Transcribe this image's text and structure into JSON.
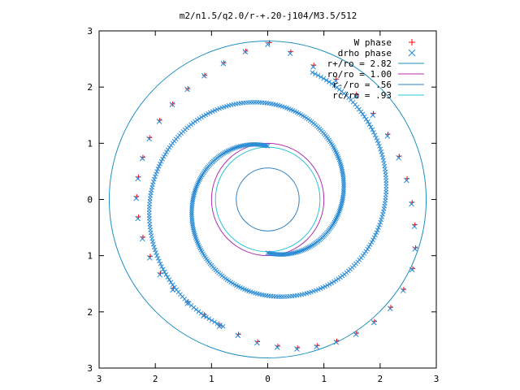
{
  "chart_data": {
    "type": "scatter",
    "title": "m2/n1.5/q2.0/r-+.20-j104/M3.5/512",
    "xlim": [
      -3,
      3
    ],
    "ylim": [
      -3,
      3
    ],
    "x_tick_labels": [
      "3",
      "2",
      "1",
      "0",
      "1",
      "2",
      "3"
    ],
    "x_tick_values": [
      -3,
      -2,
      -1,
      0,
      1,
      2,
      3
    ],
    "y_tick_labels": [
      "3",
      "2",
      "1",
      "0",
      "1",
      "2",
      "3"
    ],
    "y_tick_values": [
      3,
      2,
      1,
      0,
      -1,
      -2,
      -3
    ],
    "grid": false,
    "legend_position": "top-right",
    "legend": [
      {
        "label": "W phase",
        "marker": "+",
        "color": "#ff0000"
      },
      {
        "label": "drho phase",
        "marker": "x",
        "color": "#2a8bd4"
      },
      {
        "label": "r+/ro = 2.82",
        "color": "#1f8fc0"
      },
      {
        "label": "ro/ro = 1.00",
        "color": "#b030b0"
      },
      {
        "label": "r-/ro = .56",
        "color": "#2e7fbf"
      },
      {
        "label": "rc/ro = .93",
        "color": "#28c4d8"
      }
    ],
    "circles": [
      {
        "radius": 2.82,
        "color": "#1f8fc0"
      },
      {
        "radius": 1.0,
        "color": "#b030b0"
      },
      {
        "radius": 0.56,
        "color": "#2e7fbf"
      },
      {
        "radius": 0.93,
        "color": "#28c4d8"
      }
    ],
    "series": [
      {
        "name": "W phase",
        "points": [
          [
            0.03,
            2.79
          ],
          [
            -0.39,
            2.64
          ],
          [
            -0.78,
            2.43
          ],
          [
            -1.12,
            2.21
          ],
          [
            -1.42,
            1.97
          ],
          [
            -1.69,
            1.7
          ],
          [
            -1.92,
            1.41
          ],
          [
            -2.1,
            1.1
          ],
          [
            -2.22,
            0.75
          ],
          [
            -2.3,
            0.4
          ],
          [
            -2.33,
            0.05
          ],
          [
            -2.3,
            -0.31
          ],
          [
            -2.22,
            -0.67
          ],
          [
            -2.09,
            -1.01
          ],
          [
            -1.91,
            -1.31
          ],
          [
            -1.68,
            -1.58
          ],
          [
            -1.42,
            -1.82
          ],
          [
            -1.13,
            -2.05
          ],
          [
            -0.85,
            -2.24
          ],
          [
            -0.52,
            -2.4
          ],
          [
            -0.18,
            -2.53
          ],
          [
            0.18,
            -2.61
          ],
          [
            0.53,
            -2.64
          ],
          [
            0.88,
            -2.6
          ],
          [
            1.23,
            -2.52
          ],
          [
            1.58,
            -2.38
          ],
          [
            1.9,
            -2.17
          ],
          [
            2.19,
            -1.92
          ],
          [
            2.42,
            -1.6
          ],
          [
            2.58,
            -1.23
          ],
          [
            2.63,
            -0.86
          ],
          [
            2.62,
            -0.45
          ],
          [
            2.57,
            -0.05
          ],
          [
            2.48,
            0.37
          ],
          [
            2.34,
            0.77
          ],
          [
            2.14,
            1.16
          ],
          [
            1.88,
            1.53
          ],
          [
            1.58,
            1.87
          ],
          [
            1.22,
            2.14
          ],
          [
            0.82,
            2.39
          ],
          [
            0.41,
            2.63
          ]
        ]
      },
      {
        "name": "drho phase",
        "points": [
          [
            0.0,
            2.76
          ],
          [
            -0.4,
            2.63
          ],
          [
            -0.79,
            2.42
          ],
          [
            -1.13,
            2.2
          ],
          [
            -1.43,
            1.96
          ],
          [
            -1.7,
            1.69
          ],
          [
            -1.93,
            1.39
          ],
          [
            -2.11,
            1.08
          ],
          [
            -2.23,
            0.73
          ],
          [
            -2.31,
            0.37
          ],
          [
            -2.34,
            0.02
          ],
          [
            -2.31,
            -0.34
          ],
          [
            -2.23,
            -0.7
          ],
          [
            -2.1,
            -1.04
          ],
          [
            -1.92,
            -1.34
          ],
          [
            -1.69,
            -1.61
          ],
          [
            -1.43,
            -1.85
          ],
          [
            -1.14,
            -2.07
          ],
          [
            -0.86,
            -2.26
          ],
          [
            -0.53,
            -2.42
          ],
          [
            -0.19,
            -2.55
          ],
          [
            0.17,
            -2.63
          ],
          [
            0.52,
            -2.66
          ],
          [
            0.87,
            -2.62
          ],
          [
            1.22,
            -2.54
          ],
          [
            1.57,
            -2.4
          ],
          [
            1.89,
            -2.19
          ],
          [
            2.18,
            -1.94
          ],
          [
            2.41,
            -1.62
          ],
          [
            2.57,
            -1.25
          ],
          [
            2.62,
            -0.88
          ],
          [
            2.61,
            -0.48
          ],
          [
            2.56,
            -0.08
          ],
          [
            2.47,
            0.34
          ],
          [
            2.33,
            0.74
          ],
          [
            2.13,
            1.13
          ],
          [
            1.87,
            1.5
          ],
          [
            1.57,
            1.84
          ],
          [
            1.21,
            2.11
          ],
          [
            0.81,
            2.36
          ],
          [
            0.4,
            2.6
          ]
        ]
      }
    ]
  }
}
